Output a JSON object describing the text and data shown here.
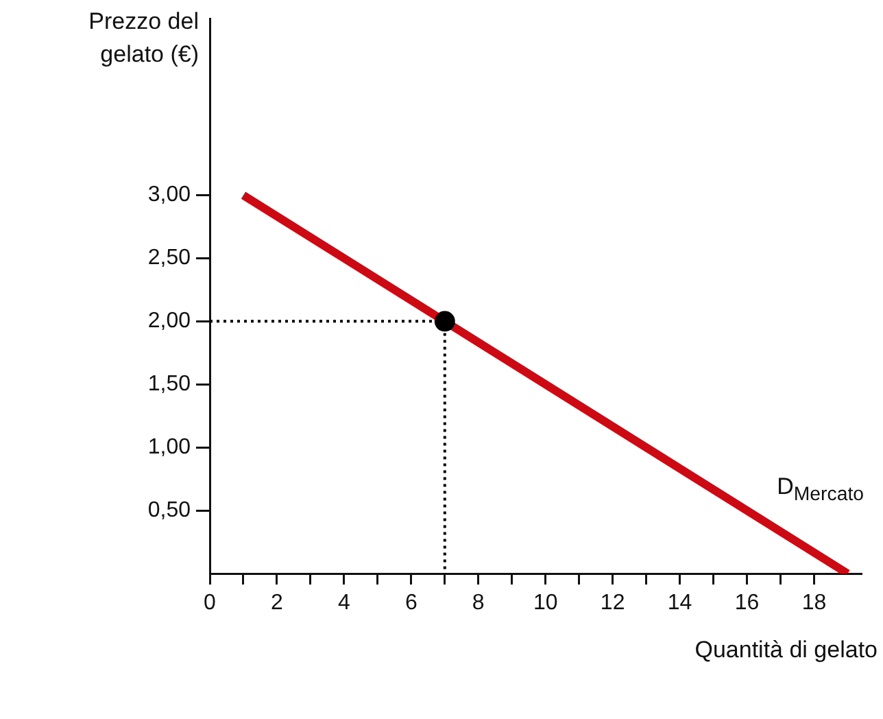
{
  "chart_data": {
    "type": "line",
    "xlabel": "Quantità di gelato",
    "ylabel": "Prezzo del gelato (€)",
    "series": [
      {
        "color": "#cc0a14",
        "x": [
          1,
          19
        ],
        "values": [
          3,
          0
        ],
        "line_style": "solid",
        "marker": "none"
      },
      {
        "type": "line",
        "color": "#000000",
        "x": [
          0,
          7,
          7
        ],
        "values": [
          2,
          2,
          0
        ],
        "line_style": "dotted",
        "marker": "none"
      },
      {
        "type": "scatter",
        "color": "#000000",
        "x": [
          7
        ],
        "values": [
          2
        ],
        "marker": "circle"
      }
    ],
    "xlim": [
      0,
      19.4
    ],
    "ylim": [
      0,
      4.4
    ],
    "xticks": [
      0,
      {
        "value": 1,
        "label": null
      },
      2,
      {
        "value": 3,
        "label": null
      },
      4,
      {
        "value": 5,
        "label": null
      },
      6,
      {
        "value": 7,
        "label": null
      },
      8,
      {
        "value": 9,
        "label": null
      },
      10,
      {
        "value": 11,
        "label": null
      },
      12,
      {
        "value": 13,
        "label": null
      },
      14,
      {
        "value": 15,
        "label": null
      },
      16,
      {
        "value": 17,
        "label": null
      },
      18
    ],
    "yticks": [
      {
        "value": 0.5,
        "label": "0,50"
      },
      {
        "value": 1,
        "label": "1,00"
      },
      {
        "value": 1.5,
        "label": "1,50"
      },
      {
        "value": 2,
        "label": "2,00"
      },
      {
        "value": 2.5,
        "label": "2,50"
      },
      {
        "value": 3,
        "label": "3,00"
      }
    ],
    "annotations": [
      "D$_{Mercato}$"
    ],
    "grid": false,
    "legend": false
  }
}
